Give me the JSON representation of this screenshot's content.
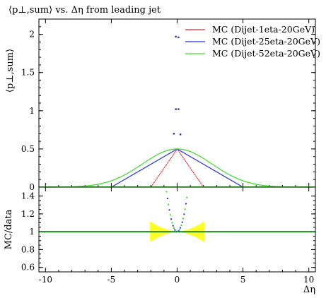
{
  "chart_data": {
    "type": "scatter",
    "title": "⟨p⊥,sum⟩ vs. Δη from leading jet",
    "ylabel_main": "⟨p⊥,sum⟩",
    "ylabel_ratio": "MC/data",
    "xlabel": "Δη",
    "xlim": [
      -10.5,
      10.5
    ],
    "x_ticks": [
      "-10",
      "-5",
      "0",
      "5",
      "10"
    ],
    "main_ylim": [
      0,
      2.2
    ],
    "main_y_ticks": [
      "0",
      "0.5",
      "1",
      "1.5",
      "2"
    ],
    "ratio_ylim": [
      0.55,
      1.5
    ],
    "ratio_y_ticks": [
      "0.6",
      "0.8",
      "1",
      "1.2",
      "1.4"
    ],
    "legend_position": "top-right",
    "series": [
      {
        "name": "MC (Dijet-1eta-20GeV)",
        "color": "#e8262d",
        "halfwidth": 2.0,
        "peak": 0.5
      },
      {
        "name": "MC (Dijet-25eta-20GeV)",
        "color": "#2230e0",
        "halfwidth": 5.0,
        "peak": 0.5
      },
      {
        "name": "MC (Dijet-52eta-20GeV)",
        "color": "#3ddc2a",
        "halfwidth": 10.0,
        "peak": 0.5
      }
    ],
    "central_points": [
      {
        "x": -0.1,
        "y": 1.97
      },
      {
        "x": 0.1,
        "y": 1.96
      },
      {
        "x": -0.1,
        "y": 1.02
      },
      {
        "x": 0.1,
        "y": 1.02
      },
      {
        "x": -0.25,
        "y": 0.7
      },
      {
        "x": 0.25,
        "y": 0.69
      }
    ],
    "ratio_band": {
      "xmin": -2.0,
      "xmax": 2.0,
      "color": "#ffff00"
    },
    "ratio_reference": 1.0
  }
}
